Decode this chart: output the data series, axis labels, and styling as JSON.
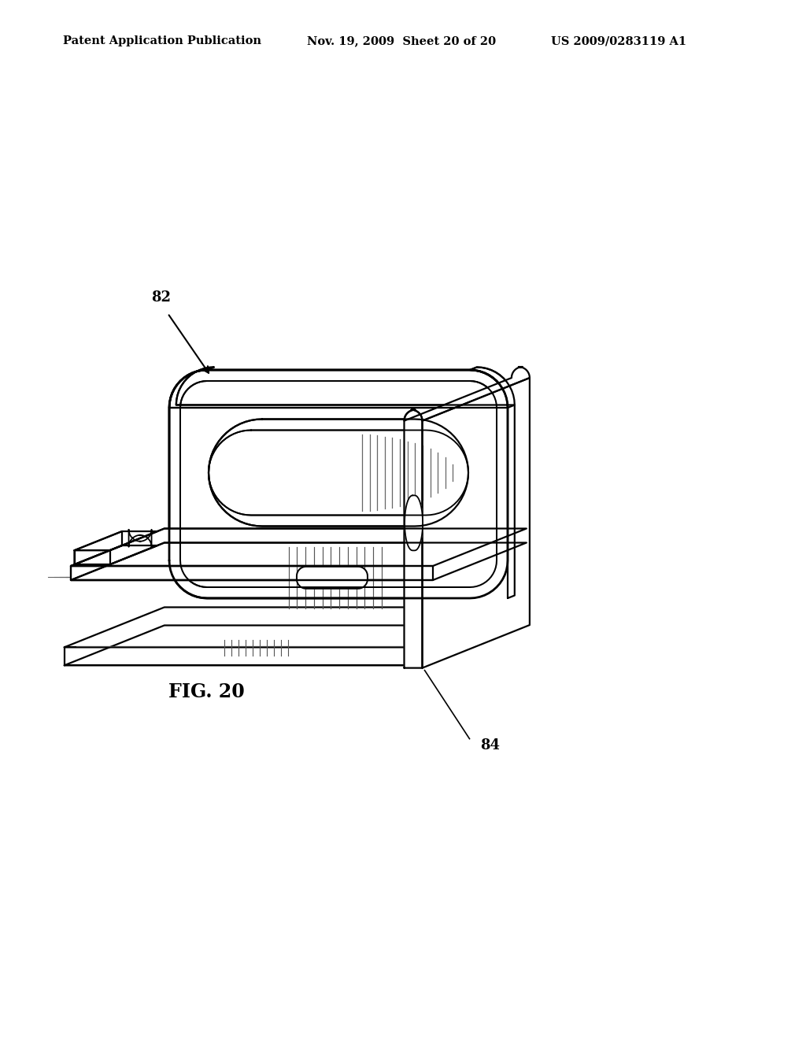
{
  "header_left": "Patent Application Publication",
  "header_mid": "Nov. 19, 2009  Sheet 20 of 20",
  "header_right": "US 2009/0283119 A1",
  "fig_label": "FIG. 20",
  "label_82": "82",
  "label_84": "84",
  "bg_color": "#ffffff",
  "line_color": "#000000",
  "header_fontsize": 10.5,
  "fig_label_fontsize": 17,
  "annotation_fontsize": 13
}
